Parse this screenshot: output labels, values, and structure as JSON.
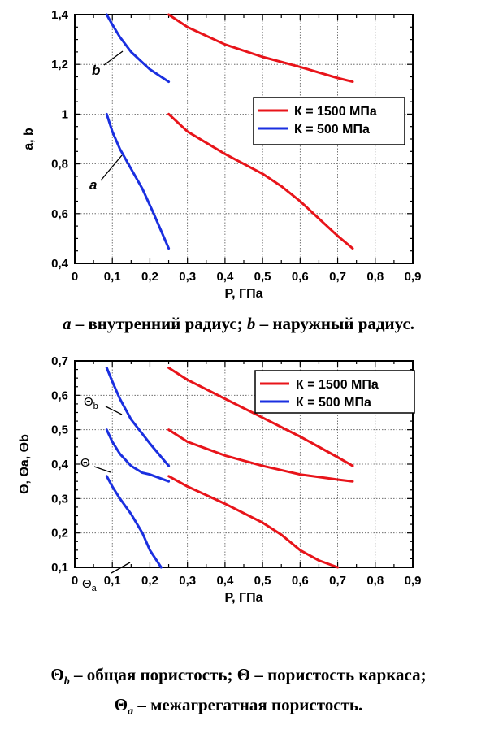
{
  "colors": {
    "red": "#e8141a",
    "blue": "#1a2fe0"
  },
  "chart_data": [
    {
      "type": "line",
      "xlabel": "P, ГПа",
      "ylabel": "a, b",
      "xlim": [
        0,
        0.9
      ],
      "ylim": [
        0.4,
        1.4
      ],
      "xticks": [
        "0",
        "0,1",
        "0,2",
        "0,3",
        "0,4",
        "0,5",
        "0,6",
        "0,7",
        "0,8",
        "0,9"
      ],
      "yticks": [
        "0,4",
        "0,6",
        "0,8",
        "1",
        "1,2",
        "1,4"
      ],
      "grid": true,
      "legend": {
        "position": "right",
        "entries": [
          "К = 1500 МПа",
          "К = 500 МПа"
        ]
      },
      "annotations": [
        "b",
        "a"
      ],
      "series": [
        {
          "name": "К = 1500 МПа",
          "color": "red",
          "label": "b",
          "x": [
            0.25,
            0.3,
            0.4,
            0.5,
            0.6,
            0.7,
            0.74
          ],
          "y": [
            1.4,
            1.35,
            1.28,
            1.23,
            1.19,
            1.145,
            1.13
          ]
        },
        {
          "name": "К = 1500 МПа",
          "color": "red",
          "label": "a",
          "x": [
            0.25,
            0.3,
            0.4,
            0.5,
            0.55,
            0.6,
            0.65,
            0.7,
            0.74
          ],
          "y": [
            1.0,
            0.93,
            0.84,
            0.76,
            0.71,
            0.65,
            0.58,
            0.51,
            0.46
          ]
        },
        {
          "name": "К = 500 МПа",
          "color": "blue",
          "label": "b",
          "x": [
            0.085,
            0.1,
            0.12,
            0.15,
            0.2,
            0.25
          ],
          "y": [
            1.4,
            1.36,
            1.31,
            1.25,
            1.18,
            1.13
          ]
        },
        {
          "name": "К = 500 МПа",
          "color": "blue",
          "label": "a",
          "x": [
            0.085,
            0.1,
            0.12,
            0.15,
            0.18,
            0.21,
            0.25
          ],
          "y": [
            1.0,
            0.93,
            0.86,
            0.78,
            0.7,
            0.6,
            0.46
          ]
        }
      ]
    },
    {
      "type": "line",
      "xlabel": "P, ГПа",
      "ylabel": "Θ, Θa, Θb",
      "xlim": [
        0,
        0.9
      ],
      "ylim": [
        0.1,
        0.7
      ],
      "xticks": [
        "0",
        "0,1",
        "0,2",
        "0,3",
        "0,4",
        "0,5",
        "0,6",
        "0,7",
        "0,8",
        "0,9"
      ],
      "yticks": [
        "0,1",
        "0,2",
        "0,3",
        "0,4",
        "0,5",
        "0,6",
        "0,7"
      ],
      "grid": true,
      "legend": {
        "position": "top-right",
        "entries": [
          "К = 1500 МПа",
          "К = 500 МПа"
        ]
      },
      "annotations": [
        "Θb",
        "Θ",
        "Θa"
      ],
      "series": [
        {
          "name": "К = 1500 МПа",
          "color": "red",
          "label": "Θb",
          "x": [
            0.25,
            0.3,
            0.4,
            0.5,
            0.6,
            0.7,
            0.74
          ],
          "y": [
            0.68,
            0.645,
            0.59,
            0.535,
            0.48,
            0.42,
            0.395
          ]
        },
        {
          "name": "К = 1500 МПа",
          "color": "red",
          "label": "Θ",
          "x": [
            0.25,
            0.3,
            0.4,
            0.5,
            0.6,
            0.7,
            0.74
          ],
          "y": [
            0.5,
            0.465,
            0.425,
            0.395,
            0.37,
            0.355,
            0.35
          ]
        },
        {
          "name": "К = 1500 МПа",
          "color": "red",
          "label": "Θa",
          "x": [
            0.25,
            0.3,
            0.4,
            0.5,
            0.55,
            0.6,
            0.65,
            0.7
          ],
          "y": [
            0.365,
            0.335,
            0.285,
            0.23,
            0.195,
            0.15,
            0.12,
            0.1
          ]
        },
        {
          "name": "К = 500 МПа",
          "color": "blue",
          "label": "Θb",
          "x": [
            0.085,
            0.1,
            0.12,
            0.15,
            0.2,
            0.25
          ],
          "y": [
            0.68,
            0.64,
            0.59,
            0.53,
            0.46,
            0.395
          ]
        },
        {
          "name": "К = 500 МПа",
          "color": "blue",
          "label": "Θ",
          "x": [
            0.085,
            0.1,
            0.12,
            0.15,
            0.18,
            0.2,
            0.25
          ],
          "y": [
            0.5,
            0.465,
            0.43,
            0.395,
            0.375,
            0.37,
            0.35
          ]
        },
        {
          "name": "К = 500 МПа",
          "color": "blue",
          "label": "Θa",
          "x": [
            0.085,
            0.1,
            0.12,
            0.15,
            0.18,
            0.2,
            0.23
          ],
          "y": [
            0.365,
            0.335,
            0.3,
            0.255,
            0.2,
            0.15,
            0.1
          ]
        }
      ]
    }
  ],
  "captions": {
    "top": {
      "a": "a",
      "a_text": " – внутренний радиус; ",
      "b": "b",
      "b_text": " – наружный радиус."
    },
    "bottom": {
      "theta": "Θ",
      "b_sub": "b",
      "line1_part1": " – общая пористость; Θ – пористость каркаса;",
      "a_sub": "a",
      "line2_part": " – межагрегатная пористость."
    }
  }
}
